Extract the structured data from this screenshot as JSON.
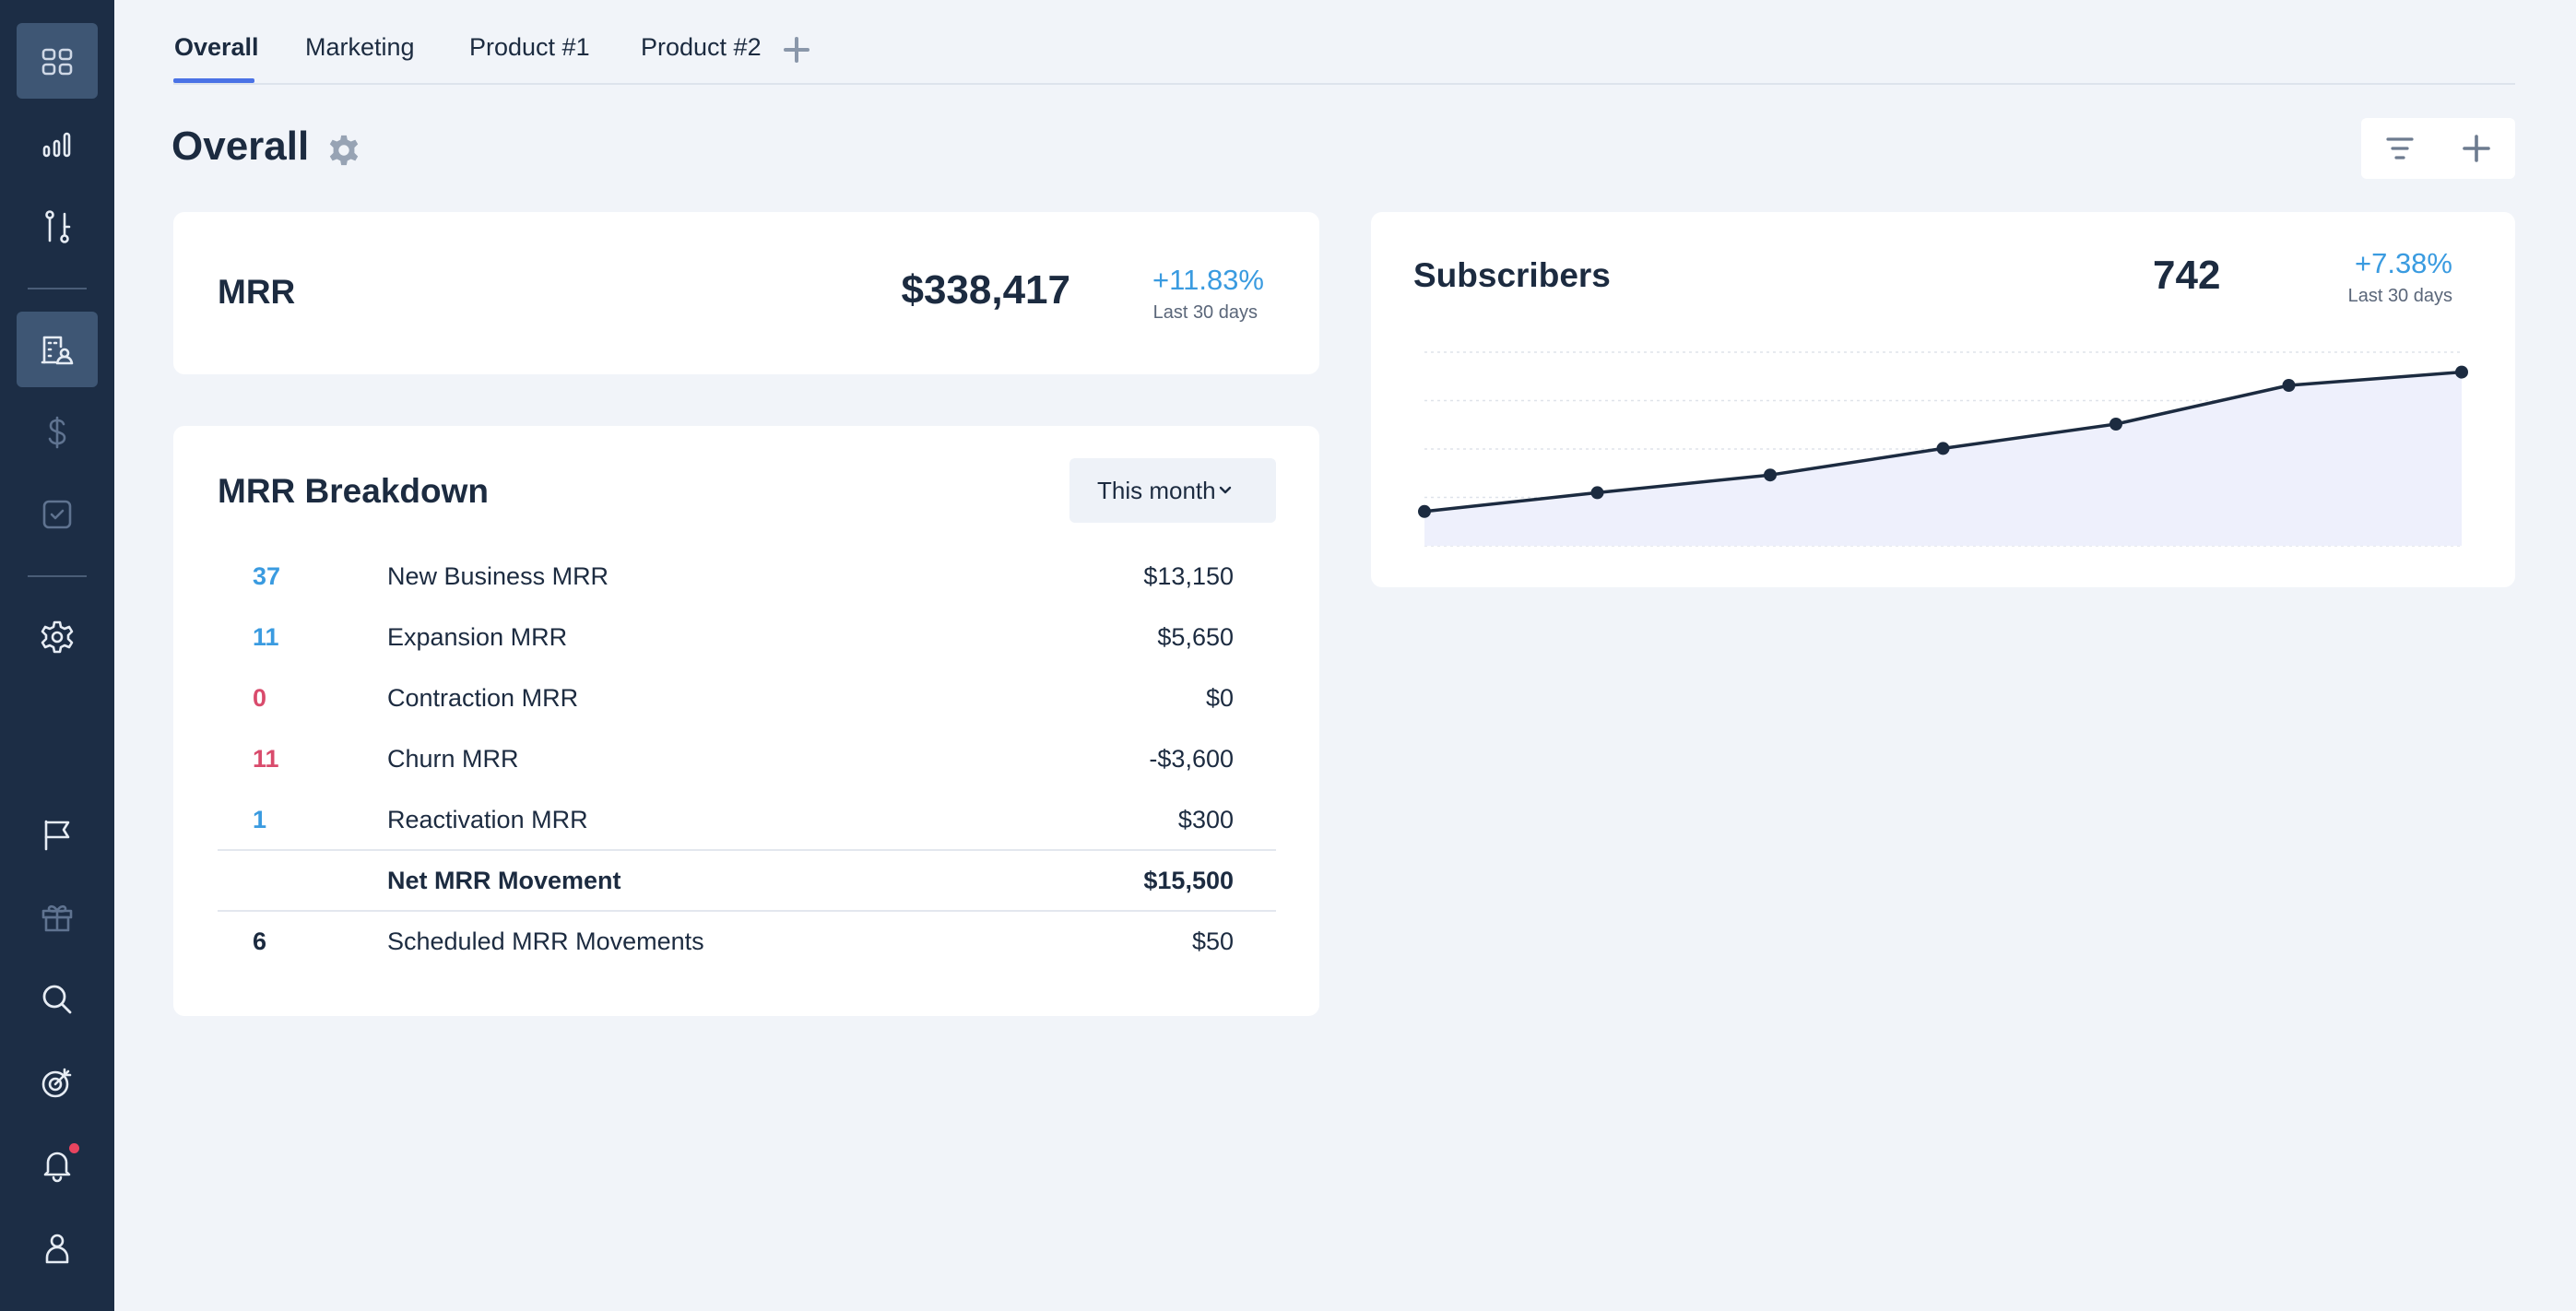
{
  "tabs": [
    {
      "label": "Overall",
      "active": true
    },
    {
      "label": "Marketing",
      "active": false
    },
    {
      "label": "Product #1",
      "active": false
    },
    {
      "label": "Product #2",
      "active": false
    }
  ],
  "page": {
    "title": "Overall"
  },
  "sidebar": {
    "icons": [
      "dashboard-icon",
      "bar-chart-icon",
      "flow-icon",
      "building-user-icon",
      "dollar-icon",
      "checkbox-icon",
      "settings-icon",
      "flag-icon",
      "gift-icon",
      "search-icon",
      "target-icon",
      "bell-icon",
      "user-icon"
    ],
    "active": "dashboard-icon"
  },
  "mrr": {
    "label": "MRR",
    "value": "$338,417",
    "change": "+11.83%",
    "period": "Last 30 days"
  },
  "breakdown": {
    "title": "MRR Breakdown",
    "range": "This month",
    "rows": [
      {
        "count": "37",
        "label": "New Business MRR",
        "amount": "$13,150",
        "tone": "blue"
      },
      {
        "count": "11",
        "label": "Expansion MRR",
        "amount": "$5,650",
        "tone": "blue"
      },
      {
        "count": "0",
        "label": "Contraction MRR",
        "amount": "$0",
        "tone": "red"
      },
      {
        "count": "11",
        "label": "Churn MRR",
        "amount": "-$3,600",
        "tone": "red"
      },
      {
        "count": "1",
        "label": "Reactivation MRR",
        "amount": "$300",
        "tone": "blue"
      }
    ],
    "net": {
      "label": "Net MRR Movement",
      "amount": "$15,500"
    },
    "scheduled": {
      "count": "6",
      "label": "Scheduled MRR Movements",
      "amount": "$50"
    }
  },
  "subscribers": {
    "label": "Subscribers",
    "value": "742",
    "change": "+7.38%",
    "period": "Last 30 days"
  },
  "chart_data": {
    "type": "line",
    "x": [
      1,
      2,
      3,
      4,
      5,
      6,
      7
    ],
    "values": [
      601,
      618,
      634,
      658,
      680,
      715,
      727
    ],
    "ylim": [
      570,
      745
    ],
    "grid": true,
    "area_fill": true
  },
  "colors": {
    "sidebar": "#1c2d45",
    "accent": "#3a9be0",
    "negative": "#d94b6c",
    "tab_underline": "#4a72e6"
  }
}
